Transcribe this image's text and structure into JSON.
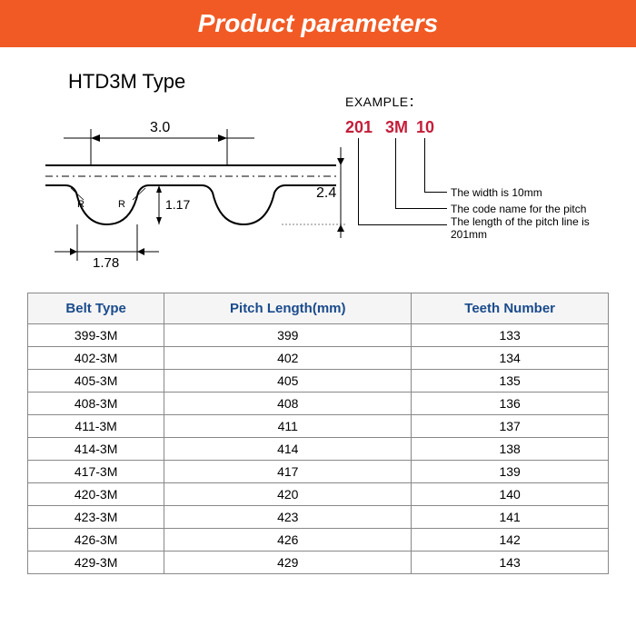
{
  "header": {
    "title": "Product parameters"
  },
  "diagram": {
    "type_label": "HTD3M Type",
    "dims": {
      "pitch": "3.0",
      "tooth_width": "1.78",
      "tooth_depth": "1.17",
      "belt_height": "2.4",
      "radius_label": "R"
    }
  },
  "example": {
    "header": "EXAMPLE：",
    "parts": {
      "length": "201",
      "pitch_code": "3M",
      "width": "10"
    },
    "notes": {
      "width": "The width is 10mm",
      "pitch": "The code name for the pitch",
      "length": "The length of the pitch line is 201mm"
    }
  },
  "table": {
    "columns": [
      "Belt Type",
      "Pitch Length(mm)",
      "Teeth Number"
    ],
    "rows": [
      [
        "399-3M",
        "399",
        "133"
      ],
      [
        "402-3M",
        "402",
        "134"
      ],
      [
        "405-3M",
        "405",
        "135"
      ],
      [
        "408-3M",
        "408",
        "136"
      ],
      [
        "411-3M",
        "411",
        "137"
      ],
      [
        "414-3M",
        "414",
        "138"
      ],
      [
        "417-3M",
        "417",
        "139"
      ],
      [
        "420-3M",
        "420",
        "140"
      ],
      [
        "423-3M",
        "423",
        "141"
      ],
      [
        "426-3M",
        "426",
        "142"
      ],
      [
        "429-3M",
        "429",
        "143"
      ]
    ]
  },
  "colors": {
    "header_bg": "#f15a24",
    "header_text": "#ffffff",
    "table_header_text": "#1a4b8c",
    "example_code": "#c41e3a",
    "border": "#888888"
  }
}
